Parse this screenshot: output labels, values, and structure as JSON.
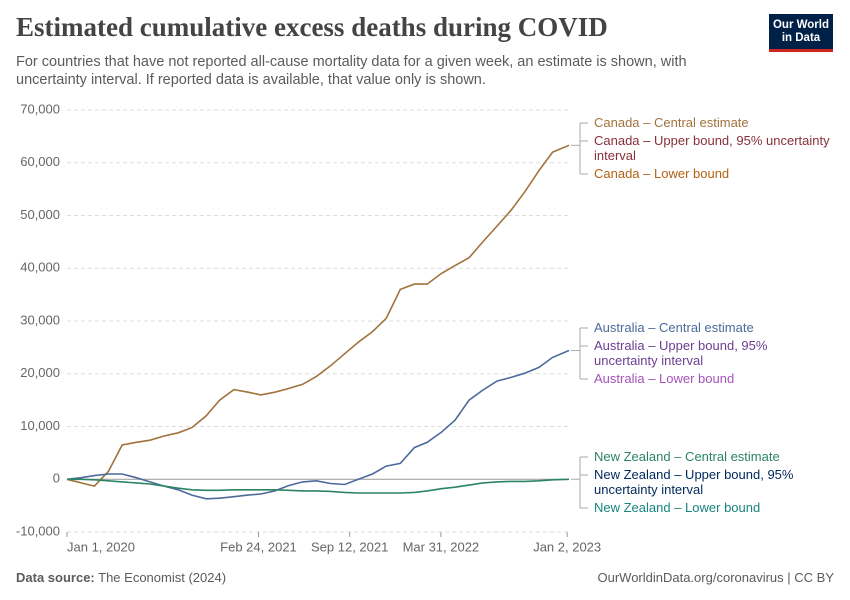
{
  "chart_data": {
    "type": "line",
    "title": "Estimated cumulative excess deaths during COVID",
    "subtitle": "For countries that have not reported all-cause mortality data for a given week, an estimate is shown, with uncertainty interval. If reported data is available, that value only is shown.",
    "logo": [
      "Our World",
      "in Data"
    ],
    "source_label": "Data source:",
    "source": "The Economist (2024)",
    "footer_right": "OurWorldinData.org/coronavirus | CC BY",
    "x": [
      "2020-01-01",
      "2020-02-01",
      "2020-03-01",
      "2020-04-01",
      "2020-05-01",
      "2020-06-01",
      "2020-07-01",
      "2020-08-01",
      "2020-09-01",
      "2020-10-01",
      "2020-11-01",
      "2020-12-01",
      "2021-01-01",
      "2021-02-01",
      "2021-03-01",
      "2021-04-01",
      "2021-05-01",
      "2021-06-01",
      "2021-07-01",
      "2021-08-01",
      "2021-09-01",
      "2021-10-01",
      "2021-11-01",
      "2021-12-01",
      "2022-01-01",
      "2022-02-01",
      "2022-03-01",
      "2022-04-01",
      "2022-05-01",
      "2022-06-01",
      "2022-07-01",
      "2022-08-01",
      "2022-09-01",
      "2022-10-01",
      "2022-11-01",
      "2022-12-01",
      "2023-01-06"
    ],
    "xlim": [
      "2020-01-01",
      "2023-01-06"
    ],
    "xticks": [
      {
        "value": "2020-01-01",
        "label": "Jan 1, 2020"
      },
      {
        "value": "2021-02-24",
        "label": "Feb 24, 2021"
      },
      {
        "value": "2021-09-12",
        "label": "Sep 12, 2021"
      },
      {
        "value": "2022-03-31",
        "label": "Mar 31, 2022"
      },
      {
        "value": "2023-01-02",
        "label": "Jan 2, 2023"
      }
    ],
    "ylim": [
      -10000,
      70000
    ],
    "yticks": [
      {
        "value": -10000,
        "label": "-10,000"
      },
      0,
      {
        "value": 10000,
        "label": "10,000"
      },
      {
        "value": 20000,
        "label": "20,000"
      },
      {
        "value": 30000,
        "label": "30,000"
      },
      {
        "value": 40000,
        "label": "40,000"
      },
      {
        "value": 50000,
        "label": "50,000"
      },
      {
        "value": 60000,
        "label": "60,000"
      },
      {
        "value": 70000,
        "label": "70,000"
      }
    ],
    "grid": true,
    "series": [
      {
        "name": "Canada – Central estimate",
        "color": "#a2723c",
        "values": [
          0,
          -700,
          -1300,
          1500,
          6500,
          7000,
          7400,
          8200,
          8800,
          9800,
          12000,
          15000,
          17000,
          16500,
          16000,
          16500,
          17200,
          18000,
          19500,
          21500,
          23800,
          26000,
          28000,
          30500,
          36000,
          37000,
          37000,
          39000,
          40500,
          42000,
          45000,
          48000,
          51000,
          54500,
          58500,
          62000,
          63300
        ]
      },
      {
        "name": "Canada – Upper bound, 95% uncertainty interval",
        "color": "#883039",
        "values": [
          null,
          null,
          null,
          null,
          null,
          null,
          null,
          null,
          null,
          null,
          null,
          null,
          null,
          null,
          null,
          null,
          null,
          null,
          null,
          null,
          null,
          null,
          null,
          null,
          null,
          null,
          null,
          null,
          null,
          null,
          null,
          null,
          null,
          null,
          null,
          null,
          null
        ]
      },
      {
        "name": "Canada – Lower bound",
        "color": "#b16214",
        "values": [
          null,
          null,
          null,
          null,
          null,
          null,
          null,
          null,
          null,
          null,
          null,
          null,
          null,
          null,
          null,
          null,
          null,
          null,
          null,
          null,
          null,
          null,
          null,
          null,
          null,
          null,
          null,
          null,
          null,
          null,
          null,
          null,
          null,
          null,
          null,
          null,
          null
        ]
      },
      {
        "name": "Australia – Central estimate",
        "color": "#4c6a9c",
        "values": [
          0,
          300,
          700,
          1000,
          1000,
          300,
          -500,
          -1300,
          -2000,
          -3000,
          -3700,
          -3600,
          -3300,
          -3000,
          -2800,
          -2200,
          -1200,
          -500,
          -300,
          -800,
          -1000,
          0,
          1000,
          2500,
          3000,
          6000,
          7000,
          8900,
          11200,
          15000,
          16900,
          18600,
          19300,
          20100,
          21200,
          23100,
          24400
        ]
      },
      {
        "name": "Australia – Upper bound, 95% uncertainty interval",
        "color": "#6d3e91",
        "values": [
          null,
          null,
          null,
          null,
          null,
          null,
          null,
          null,
          null,
          null,
          null,
          null,
          null,
          null,
          null,
          null,
          null,
          null,
          null,
          null,
          null,
          null,
          null,
          null,
          null,
          null,
          null,
          null,
          null,
          null,
          null,
          null,
          null,
          null,
          null,
          null,
          null
        ]
      },
      {
        "name": "Australia – Lower bound",
        "color": "#a652ba",
        "values": [
          null,
          null,
          null,
          null,
          null,
          null,
          null,
          null,
          null,
          null,
          null,
          null,
          null,
          null,
          null,
          null,
          null,
          null,
          null,
          null,
          null,
          null,
          null,
          null,
          null,
          null,
          null,
          null,
          null,
          null,
          null,
          null,
          null,
          null,
          null,
          null,
          null
        ]
      },
      {
        "name": "New Zealand – Central estimate",
        "color": "#2c8465",
        "values": [
          0,
          0,
          -100,
          -300,
          -500,
          -700,
          -900,
          -1300,
          -1700,
          -2000,
          -2100,
          -2100,
          -2000,
          -2000,
          -2000,
          -2000,
          -2100,
          -2200,
          -2200,
          -2300,
          -2500,
          -2600,
          -2600,
          -2600,
          -2600,
          -2500,
          -2200,
          -1800,
          -1500,
          -1100,
          -700,
          -500,
          -400,
          -400,
          -300,
          -100,
          0
        ]
      },
      {
        "name": "New Zealand – Upper bound, 95% uncertainty interval",
        "color": "#00295b",
        "values": [
          null,
          null,
          null,
          null,
          null,
          null,
          null,
          null,
          null,
          null,
          null,
          null,
          null,
          null,
          null,
          null,
          null,
          null,
          null,
          null,
          null,
          null,
          null,
          null,
          null,
          null,
          null,
          null,
          null,
          null,
          null,
          null,
          null,
          null,
          null,
          null,
          null
        ]
      },
      {
        "name": "New Zealand – Lower bound",
        "color": "#18857f",
        "values": [
          null,
          null,
          null,
          null,
          null,
          null,
          null,
          null,
          null,
          null,
          null,
          null,
          null,
          null,
          null,
          null,
          null,
          null,
          null,
          null,
          null,
          null,
          null,
          null,
          null,
          null,
          null,
          null,
          null,
          null,
          null,
          null,
          null,
          null,
          null,
          null,
          null
        ]
      }
    ]
  }
}
